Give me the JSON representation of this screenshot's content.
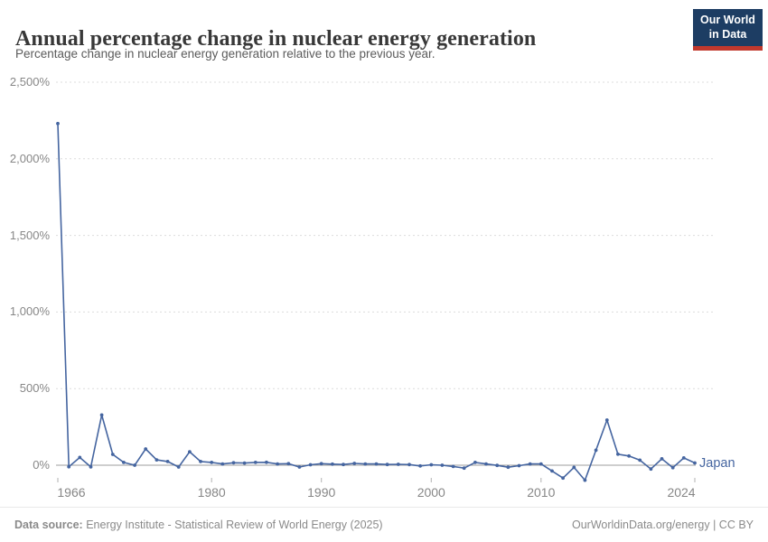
{
  "header": {
    "title": "Annual percentage change in nuclear energy generation",
    "subtitle": "Percentage change in nuclear energy generation relative to the previous year.",
    "logo": {
      "line1": "Our World",
      "line2": "in Data"
    }
  },
  "colors": {
    "series_line": "#4565a0",
    "gridline": "#dcdcdc",
    "zero_line": "#9c9c9c",
    "tick_mark": "#b0b0b0",
    "axis_text": "#878787",
    "logo_navy": "#1d3d63",
    "logo_red": "#c1382d"
  },
  "chart_data": {
    "type": "line",
    "title": "Annual percentage change in nuclear energy generation",
    "subtitle": "Percentage change in nuclear energy generation relative to the previous year.",
    "xlabel": "",
    "ylabel": "",
    "grid": "dashed horizontal",
    "legend_position": "end-of-line",
    "xlim": [
      1965.8,
      2024.2
    ],
    "ylim": [
      -110,
      2500
    ],
    "x_ticks": [
      1966,
      1980,
      1990,
      2000,
      2010,
      2024
    ],
    "y_ticks": [
      0,
      500,
      1000,
      1500,
      2000,
      2500
    ],
    "y_tick_labels": [
      "0%",
      "500%",
      "1,000%",
      "1,500%",
      "2,000%",
      "2,500%"
    ],
    "series": [
      {
        "name": "Japan",
        "color": "#4565a0",
        "x": [
          1966,
          1967,
          1968,
          1969,
          1970,
          1971,
          1972,
          1973,
          1974,
          1975,
          1976,
          1977,
          1978,
          1979,
          1980,
          1981,
          1982,
          1983,
          1984,
          1985,
          1986,
          1987,
          1988,
          1989,
          1990,
          1991,
          1992,
          1993,
          1994,
          1995,
          1996,
          1997,
          1998,
          1999,
          2000,
          2001,
          2002,
          2003,
          2004,
          2005,
          2006,
          2007,
          2008,
          2009,
          2010,
          2011,
          2012,
          2013,
          2014,
          2015,
          2016,
          2017,
          2018,
          2019,
          2020,
          2021,
          2022,
          2023,
          2024
        ],
        "y": [
          2230,
          -10,
          51,
          -11,
          328,
          71,
          18,
          0,
          106,
          35,
          24,
          -12,
          88,
          24,
          18,
          8,
          16,
          14,
          18,
          19,
          8,
          10,
          -12,
          3,
          10,
          7,
          5,
          12,
          8,
          8,
          5,
          6,
          4,
          -5,
          3,
          0,
          -8,
          -19,
          18,
          8,
          -1,
          -13,
          -3,
          8,
          8,
          -38,
          -84,
          -14,
          -98,
          98,
          295,
          72,
          60,
          33,
          -25,
          42,
          -16,
          48,
          15
        ]
      }
    ]
  },
  "footer": {
    "datasource_label": "Data source:",
    "datasource_text": " Energy Institute - Statistical Review of World Energy (2025)",
    "right_text": "OurWorldinData.org/energy | CC BY"
  }
}
